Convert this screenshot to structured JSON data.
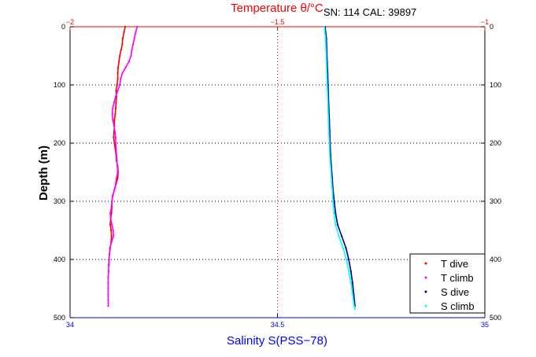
{
  "chart_data": {
    "type": "scatter",
    "title": "SN: 114  CAL: 39897",
    "top_axis": {
      "label": "Temperature θ/°C",
      "range": [
        -2,
        -1
      ],
      "ticks": [
        -2,
        -1.5,
        -1
      ],
      "tick_labels": [
        "−2",
        "−1.5",
        "−1"
      ],
      "color": "#ff0000"
    },
    "bottom_axis": {
      "label": "Salinity S(PSS−78)",
      "range": [
        34,
        35
      ],
      "ticks": [
        34,
        34.5,
        35
      ],
      "tick_labels": [
        "34",
        "34.5",
        "35"
      ],
      "color": "#0000ff"
    },
    "y_axis": {
      "label": "Depth (m)",
      "range": [
        0,
        500
      ],
      "reversed": true,
      "ticks": [
        0,
        100,
        200,
        300,
        400,
        500
      ],
      "tick_labels": [
        "0",
        "100",
        "200",
        "300",
        "400",
        "500"
      ]
    },
    "grid": true,
    "legend_position": "bottom-right",
    "series": [
      {
        "name": "T dive",
        "axis": "top",
        "color": "#ff0000",
        "points": [
          [
            -1.867,
            0
          ],
          [
            -1.87,
            10
          ],
          [
            -1.873,
            20
          ],
          [
            -1.874,
            30
          ],
          [
            -1.877,
            40
          ],
          [
            -1.88,
            50
          ],
          [
            -1.882,
            60
          ],
          [
            -1.884,
            70
          ],
          [
            -1.885,
            80
          ],
          [
            -1.885,
            90
          ],
          [
            -1.887,
            100
          ],
          [
            -1.889,
            110
          ],
          [
            -1.888,
            120
          ],
          [
            -1.889,
            130
          ],
          [
            -1.89,
            140
          ],
          [
            -1.891,
            150
          ],
          [
            -1.893,
            160
          ],
          [
            -1.893,
            170
          ],
          [
            -1.894,
            180
          ],
          [
            -1.895,
            190
          ],
          [
            -1.893,
            200
          ],
          [
            -1.891,
            210
          ],
          [
            -1.889,
            220
          ],
          [
            -1.888,
            230
          ],
          [
            -1.885,
            240
          ],
          [
            -1.884,
            250
          ],
          [
            -1.885,
            260
          ],
          [
            -1.889,
            270
          ],
          [
            -1.893,
            280
          ],
          [
            -1.897,
            290
          ],
          [
            -1.899,
            300
          ],
          [
            -1.899,
            310
          ],
          [
            -1.9,
            320
          ],
          [
            -1.902,
            330
          ],
          [
            -1.903,
            340
          ],
          [
            -1.901,
            350
          ],
          [
            -1.9,
            360
          ],
          [
            -1.901,
            370
          ],
          [
            -1.903,
            380
          ],
          [
            -1.905,
            390
          ],
          [
            -1.906,
            400
          ],
          [
            -1.906,
            410
          ]
        ]
      },
      {
        "name": "T climb",
        "axis": "top",
        "color": "#ff00ff",
        "points": [
          [
            -1.838,
            0
          ],
          [
            -1.842,
            10
          ],
          [
            -1.845,
            20
          ],
          [
            -1.848,
            30
          ],
          [
            -1.851,
            40
          ],
          [
            -1.853,
            50
          ],
          [
            -1.858,
            60
          ],
          [
            -1.866,
            70
          ],
          [
            -1.874,
            80
          ],
          [
            -1.878,
            90
          ],
          [
            -1.88,
            100
          ],
          [
            -1.885,
            110
          ],
          [
            -1.89,
            120
          ],
          [
            -1.894,
            130
          ],
          [
            -1.897,
            140
          ],
          [
            -1.898,
            150
          ],
          [
            -1.897,
            160
          ],
          [
            -1.894,
            170
          ],
          [
            -1.892,
            180
          ],
          [
            -1.89,
            190
          ],
          [
            -1.89,
            200
          ],
          [
            -1.889,
            210
          ],
          [
            -1.888,
            220
          ],
          [
            -1.887,
            230
          ],
          [
            -1.886,
            240
          ],
          [
            -1.885,
            250
          ],
          [
            -1.888,
            260
          ],
          [
            -1.89,
            270
          ],
          [
            -1.893,
            280
          ],
          [
            -1.897,
            290
          ],
          [
            -1.899,
            300
          ],
          [
            -1.9,
            310
          ],
          [
            -1.903,
            320
          ],
          [
            -1.902,
            330
          ],
          [
            -1.899,
            340
          ],
          [
            -1.896,
            350
          ],
          [
            -1.895,
            360
          ],
          [
            -1.9,
            370
          ],
          [
            -1.904,
            380
          ],
          [
            -1.905,
            390
          ],
          [
            -1.906,
            400
          ],
          [
            -1.907,
            410
          ],
          [
            -1.907,
            420
          ],
          [
            -1.908,
            430
          ],
          [
            -1.908,
            440
          ],
          [
            -1.908,
            450
          ],
          [
            -1.908,
            460
          ],
          [
            -1.908,
            470
          ],
          [
            -1.908,
            480
          ]
        ]
      },
      {
        "name": "S dive",
        "axis": "bottom",
        "color": "#00008b",
        "points": [
          [
            34.615,
            0
          ],
          [
            34.618,
            20
          ],
          [
            34.619,
            40
          ],
          [
            34.62,
            60
          ],
          [
            34.621,
            80
          ],
          [
            34.622,
            100
          ],
          [
            34.623,
            120
          ],
          [
            34.624,
            140
          ],
          [
            34.625,
            160
          ],
          [
            34.626,
            180
          ],
          [
            34.627,
            200
          ],
          [
            34.628,
            220
          ],
          [
            34.63,
            240
          ],
          [
            34.632,
            260
          ],
          [
            34.634,
            280
          ],
          [
            34.637,
            300
          ],
          [
            34.64,
            320
          ],
          [
            34.645,
            340
          ],
          [
            34.655,
            360
          ],
          [
            34.665,
            380
          ],
          [
            34.672,
            400
          ],
          [
            34.677,
            420
          ],
          [
            34.681,
            440
          ],
          [
            34.684,
            460
          ],
          [
            34.687,
            480
          ]
        ]
      },
      {
        "name": "S climb",
        "axis": "bottom",
        "color": "#00ffff",
        "points": [
          [
            34.613,
            0
          ],
          [
            34.616,
            20
          ],
          [
            34.617,
            40
          ],
          [
            34.618,
            60
          ],
          [
            34.619,
            80
          ],
          [
            34.62,
            100
          ],
          [
            34.621,
            120
          ],
          [
            34.622,
            140
          ],
          [
            34.623,
            160
          ],
          [
            34.624,
            180
          ],
          [
            34.625,
            200
          ],
          [
            34.626,
            220
          ],
          [
            34.628,
            240
          ],
          [
            34.63,
            260
          ],
          [
            34.632,
            280
          ],
          [
            34.634,
            300
          ],
          [
            34.636,
            320
          ],
          [
            34.64,
            340
          ],
          [
            34.648,
            360
          ],
          [
            34.658,
            380
          ],
          [
            34.666,
            400
          ],
          [
            34.672,
            420
          ],
          [
            34.677,
            440
          ],
          [
            34.681,
            460
          ],
          [
            34.685,
            480
          ],
          [
            34.687,
            485
          ]
        ]
      }
    ]
  }
}
